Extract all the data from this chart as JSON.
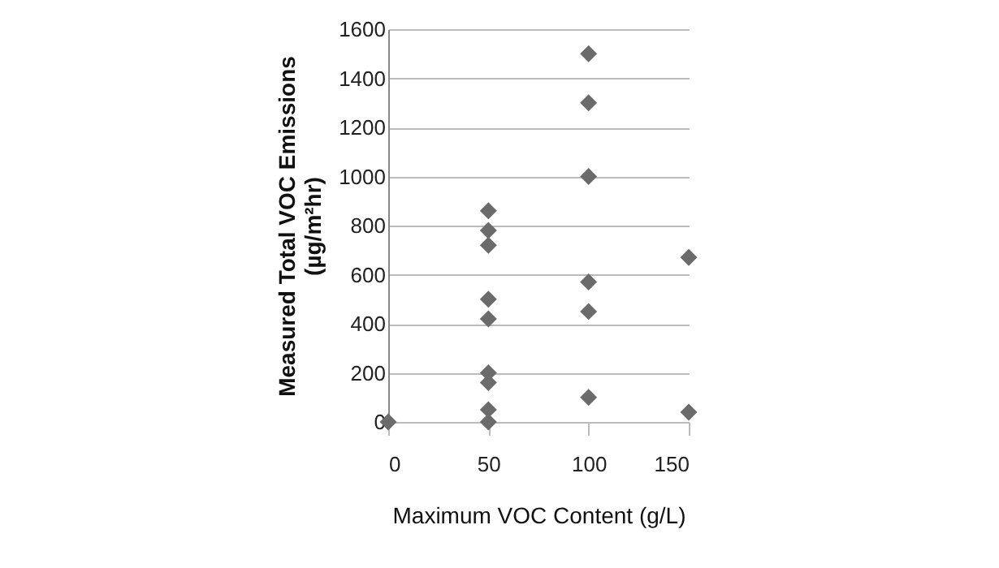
{
  "chart_data": {
    "type": "scatter",
    "xlabel": "Maximum VOC Content (g/L)",
    "ylabel": "Measured Total VOC Emissions\n(µg/m²hr)",
    "x": [
      0,
      50,
      50,
      50,
      50,
      50,
      50,
      50,
      50,
      50,
      100,
      100,
      100,
      100,
      100,
      100,
      150,
      150
    ],
    "values": [
      0,
      860,
      780,
      720,
      500,
      420,
      200,
      160,
      50,
      0,
      1500,
      1300,
      1000,
      570,
      450,
      100,
      670,
      40
    ],
    "color": "#6b6b6b",
    "marker": "diamond",
    "xlim": [
      0,
      150
    ],
    "xticks": [
      0,
      50,
      100,
      150
    ],
    "ylim": [
      0,
      1600
    ],
    "yticks": [
      0,
      200,
      400,
      600,
      800,
      1000,
      1200,
      1400,
      1600
    ],
    "grid": "y"
  }
}
